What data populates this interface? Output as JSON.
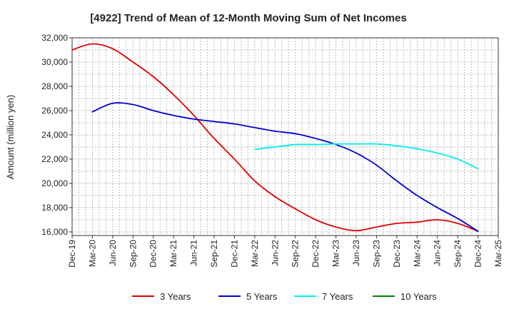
{
  "chart_data": {
    "type": "line",
    "title": "[4922]  Trend of Mean of 12-Month Moving Sum of Net Incomes",
    "xlabel": "",
    "ylabel": "Amount (million yen)",
    "ylim": [
      15700,
      32000
    ],
    "yticks": [
      16000,
      18000,
      20000,
      22000,
      24000,
      26000,
      28000,
      30000,
      32000
    ],
    "ytick_labels": [
      "16,000",
      "18,000",
      "20,000",
      "22,000",
      "24,000",
      "26,000",
      "28,000",
      "30,000",
      "32,000"
    ],
    "x_ticks": [
      "Dec-19",
      "Mar-20",
      "Jun-20",
      "Sep-20",
      "Dec-20",
      "Mar-21",
      "Jun-21",
      "Sep-21",
      "Dec-21",
      "Mar-22",
      "Jun-22",
      "Sep-22",
      "Dec-22",
      "Mar-23",
      "Jun-23",
      "Sep-23",
      "Dec-23",
      "Mar-24",
      "Jun-24",
      "Sep-24",
      "Dec-24",
      "Mar-25"
    ],
    "grid": true,
    "legend_position": "bottom",
    "series": [
      {
        "name": "3 Years",
        "color": "#dd0000",
        "x": [
          "Dec-19",
          "Mar-20",
          "Jun-20",
          "Sep-20",
          "Dec-20",
          "Mar-21",
          "Jun-21",
          "Sep-21",
          "Dec-21",
          "Mar-22",
          "Jun-22",
          "Sep-22",
          "Dec-22",
          "Mar-23",
          "Jun-23",
          "Sep-23",
          "Dec-23",
          "Mar-24",
          "Jun-24",
          "Sep-24",
          "Dec-24"
        ],
        "values": [
          31000,
          31500,
          31100,
          30000,
          28800,
          27300,
          25600,
          23700,
          22000,
          20200,
          18900,
          17900,
          17000,
          16400,
          16100,
          16400,
          16700,
          16800,
          17000,
          16700,
          16050
        ]
      },
      {
        "name": "5 Years",
        "color": "#0000cc",
        "x": [
          "Mar-20",
          "Jun-20",
          "Sep-20",
          "Dec-20",
          "Mar-21",
          "Jun-21",
          "Sep-21",
          "Dec-21",
          "Mar-22",
          "Jun-22",
          "Sep-22",
          "Dec-22",
          "Mar-23",
          "Jun-23",
          "Sep-23",
          "Dec-23",
          "Mar-24",
          "Jun-24",
          "Sep-24",
          "Dec-24"
        ],
        "values": [
          25900,
          26600,
          26500,
          26000,
          25600,
          25300,
          25100,
          24900,
          24600,
          24300,
          24100,
          23700,
          23200,
          22500,
          21500,
          20200,
          19000,
          18000,
          17100,
          16050
        ]
      },
      {
        "name": "7 Years",
        "color": "#00eeee",
        "x": [
          "Mar-22",
          "Jun-22",
          "Sep-22",
          "Dec-22",
          "Mar-23",
          "Jun-23",
          "Sep-23",
          "Dec-23",
          "Mar-24",
          "Jun-24",
          "Sep-24",
          "Dec-24"
        ],
        "values": [
          22800,
          23000,
          23200,
          23200,
          23250,
          23250,
          23250,
          23100,
          22850,
          22500,
          22000,
          21200
        ]
      },
      {
        "name": "10 Years",
        "color": "#008800",
        "x": [],
        "values": []
      }
    ]
  }
}
